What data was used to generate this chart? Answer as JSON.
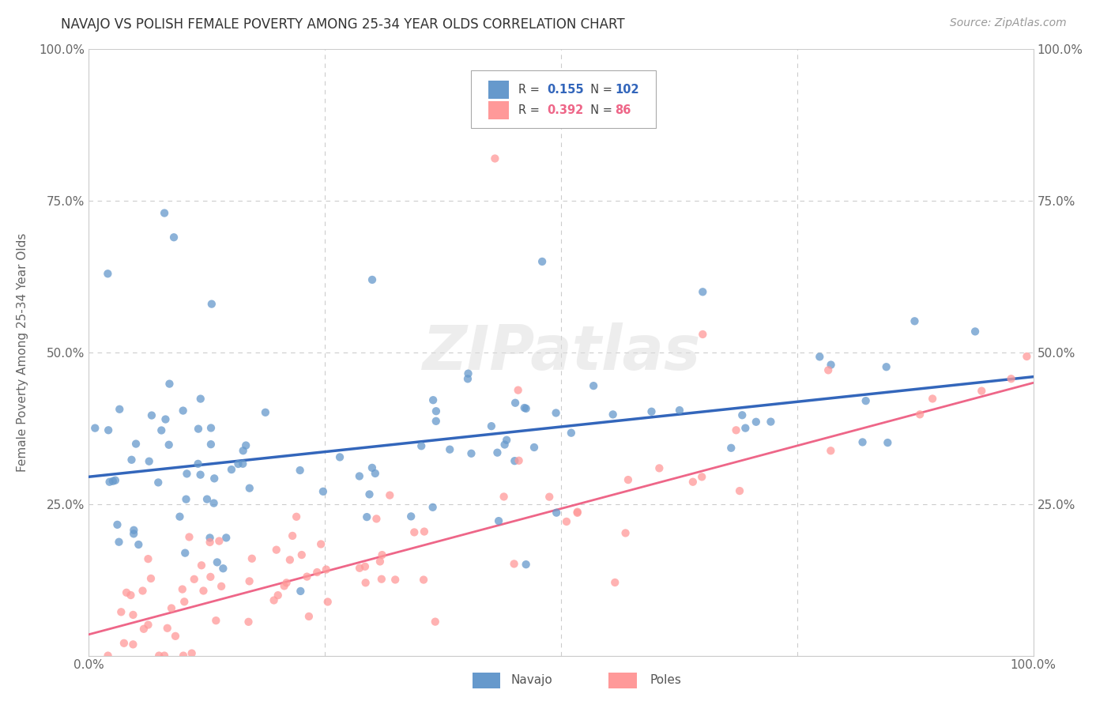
{
  "title": "NAVAJO VS POLISH FEMALE POVERTY AMONG 25-34 YEAR OLDS CORRELATION CHART",
  "source": "Source: ZipAtlas.com",
  "ylabel": "Female Poverty Among 25-34 Year Olds",
  "navajo_R": 0.155,
  "navajo_N": 102,
  "poles_R": 0.392,
  "poles_N": 86,
  "navajo_color": "#6699CC",
  "poles_color": "#FF9999",
  "navajo_line_color": "#3366BB",
  "poles_line_color": "#EE6688",
  "background_color": "#FFFFFF",
  "grid_color": "#CCCCCC",
  "navajo_line_intercept": 0.295,
  "navajo_line_slope": 0.165,
  "poles_line_intercept": 0.035,
  "poles_line_slope": 0.415
}
